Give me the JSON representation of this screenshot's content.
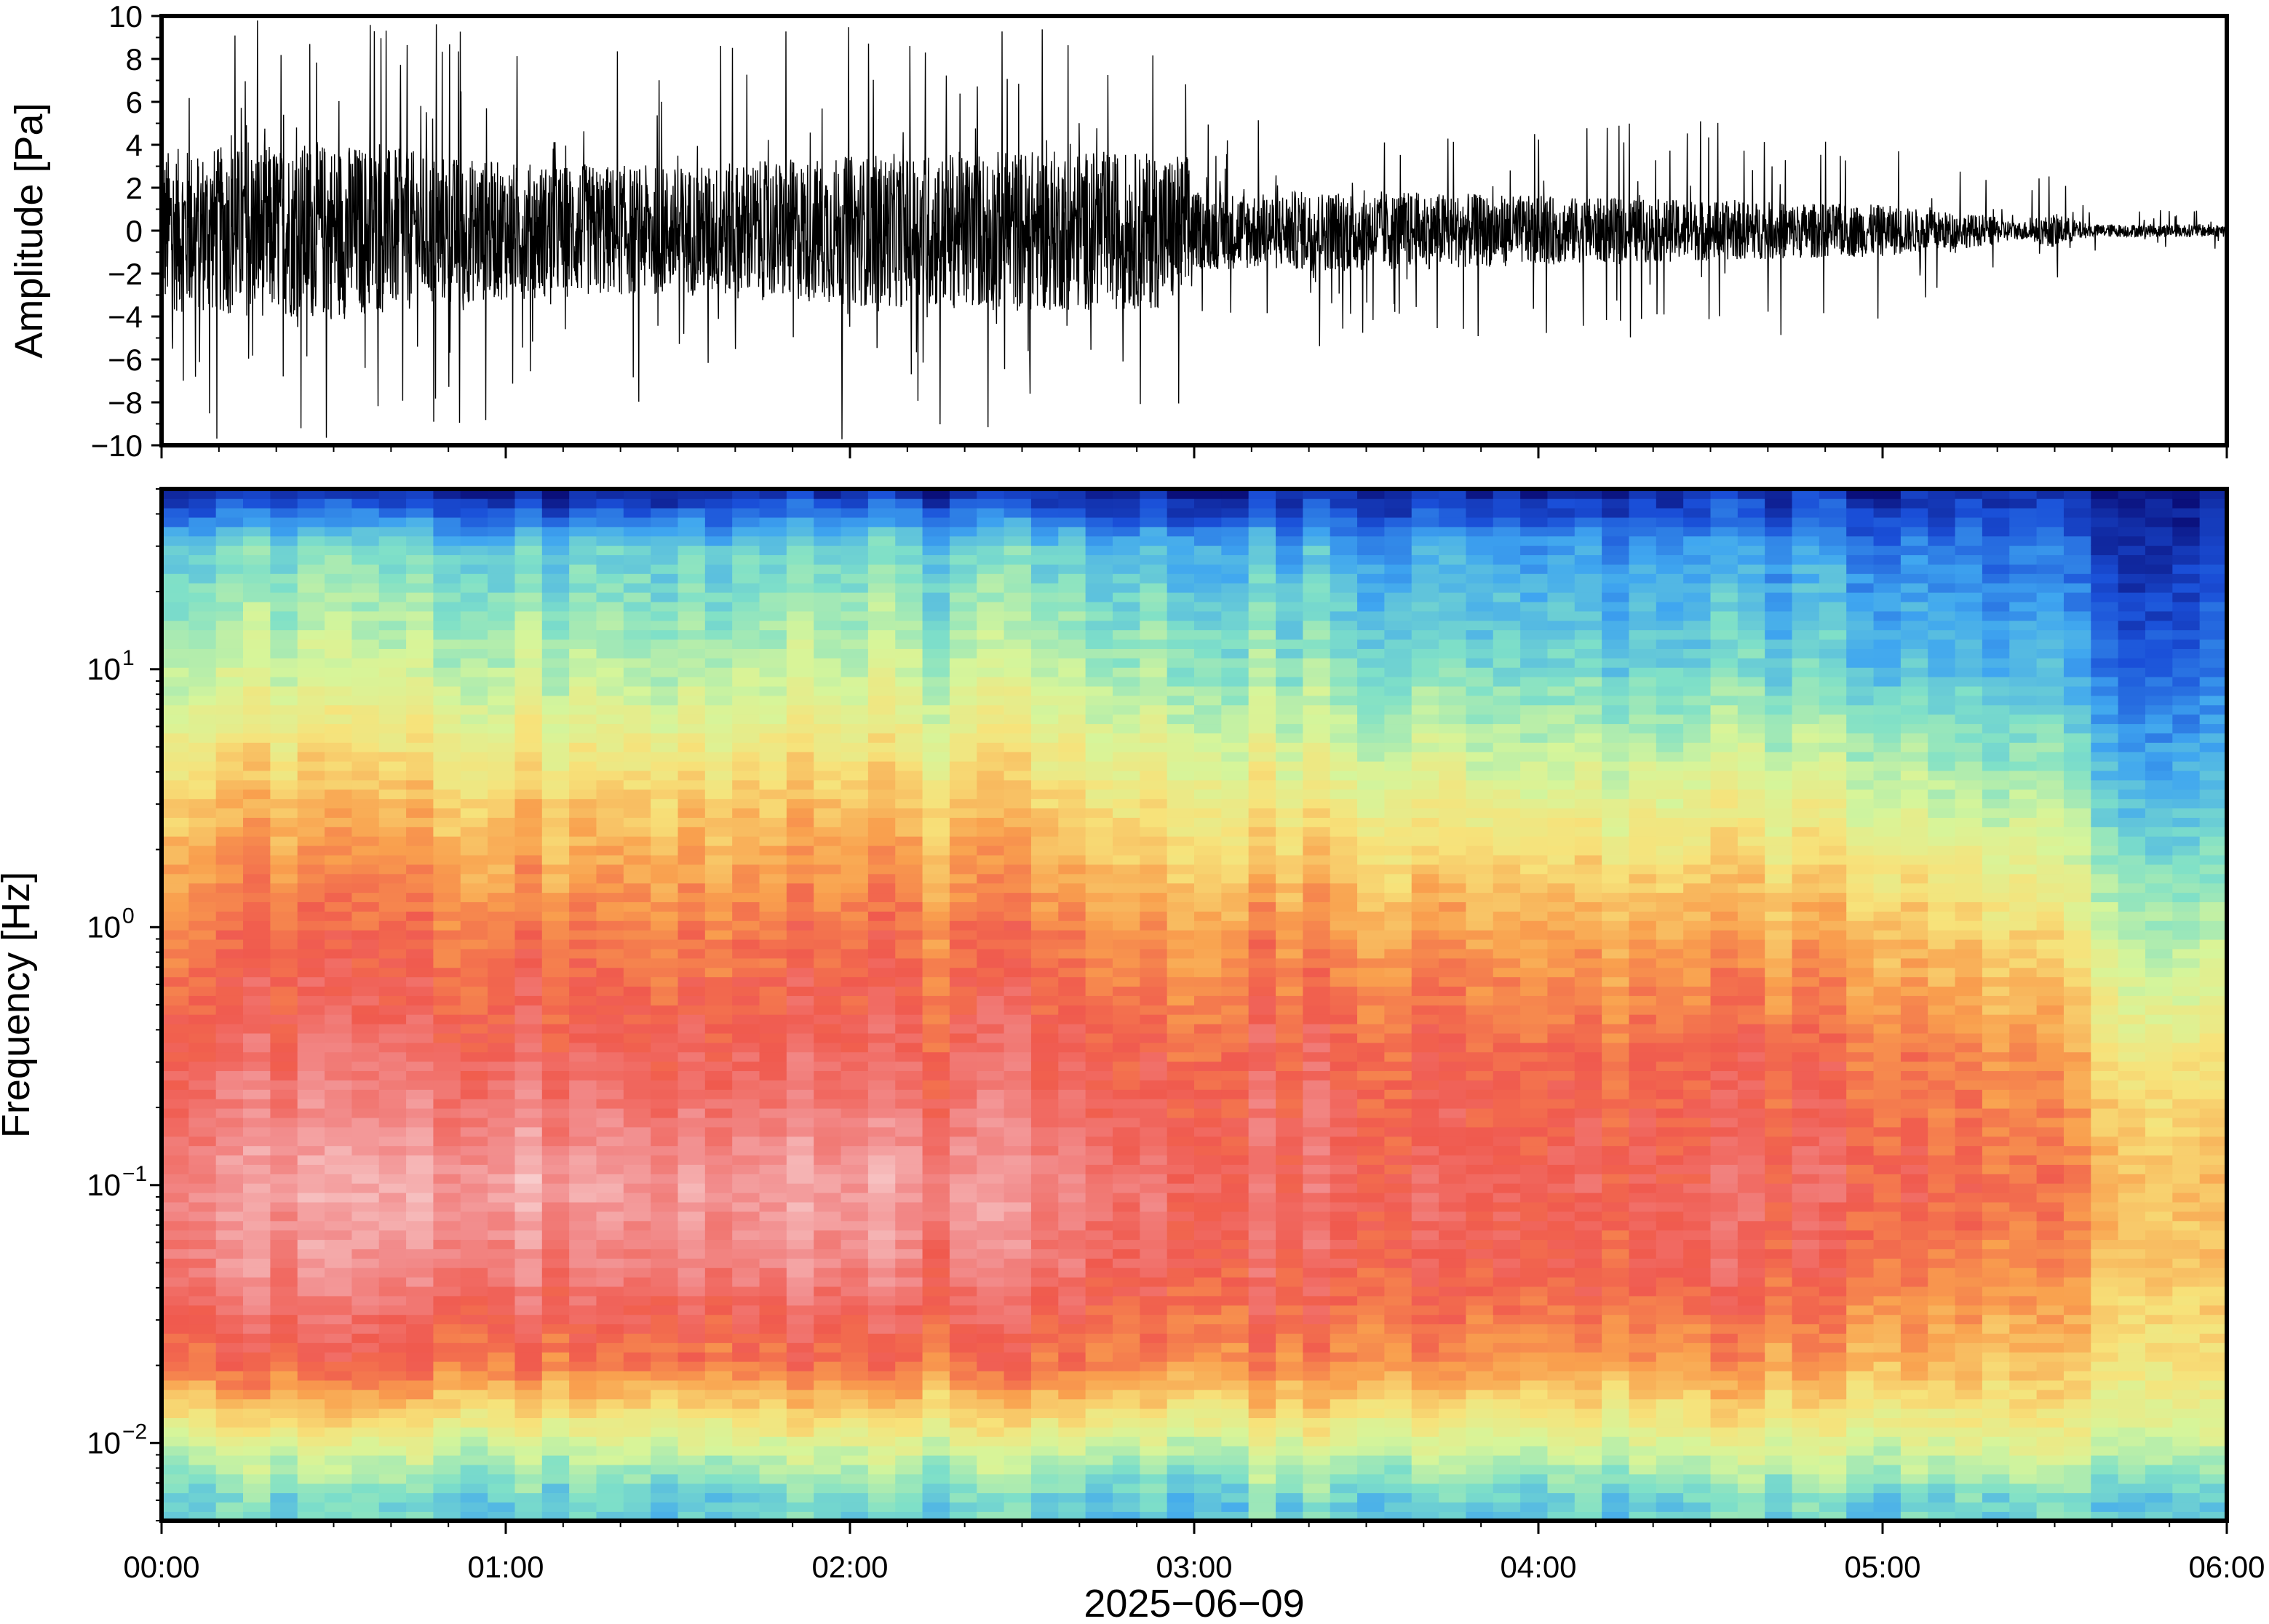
{
  "chart_data": [
    {
      "type": "line",
      "panel": "waveform",
      "ylabel": "Amplitude [Pa]",
      "ylim": [
        -10,
        10
      ],
      "yticks": [
        -10,
        -8,
        -6,
        -4,
        -2,
        0,
        2,
        4,
        6,
        8,
        10
      ],
      "ytick_labels": [
        "−10",
        "−8",
        "−6",
        "−4",
        "−2",
        "0",
        "2",
        "4",
        "6",
        "8",
        "10"
      ],
      "xlim": [
        "00:00",
        "06:00"
      ],
      "color": "#000000",
      "envelope": {
        "x_hours": [
          0.0,
          0.5,
          1.0,
          1.5,
          2.0,
          2.5,
          2.99,
          3.0,
          3.5,
          4.0,
          4.5,
          5.0,
          5.3,
          5.4,
          5.5,
          5.6,
          6.0
        ],
        "typical_amplitude": [
          3.8,
          4.2,
          3.2,
          3.0,
          3.5,
          3.8,
          3.6,
          1.8,
          1.9,
          1.6,
          1.4,
          1.2,
          0.7,
          0.4,
          0.8,
          0.3,
          0.3
        ],
        "peak_amplitude": [
          9.8,
          9.8,
          9.6,
          8.5,
          9.8,
          9.5,
          8.6,
          5.2,
          5.5,
          5.3,
          5.2,
          4.5,
          3.2,
          2.0,
          3.0,
          1.0,
          1.0
        ]
      }
    },
    {
      "type": "heatmap",
      "panel": "spectrogram",
      "ylabel": "Frequency [Hz]",
      "yscale": "log",
      "ylim": [
        0.005,
        50
      ],
      "yticks": [
        0.01,
        0.1,
        1,
        10
      ],
      "ytick_labels": [
        {
          "base": "10",
          "exp": "−2"
        },
        {
          "base": "10",
          "exp": "−1"
        },
        {
          "base": "10",
          "exp": "0"
        },
        {
          "base": "10",
          "exp": "1"
        }
      ],
      "xlim": [
        "00:00",
        "06:00"
      ],
      "colormap": [
        "#0a0f7a",
        "#1a4fd8",
        "#3fa6f0",
        "#7fe0c8",
        "#d6f59a",
        "#f7e27a",
        "#f9a04e",
        "#f05a4e",
        "#f28e8e",
        "#f8d0d0"
      ],
      "intensity_grid": {
        "time_hours": [
          0,
          1,
          2,
          3,
          3.2,
          4,
          4.5,
          5,
          5.5,
          5.75,
          6
        ],
        "freq_hz": [
          0.006,
          0.01,
          0.02,
          0.05,
          0.1,
          0.3,
          1,
          3,
          10,
          30,
          48
        ],
        "levels_0_to_1": [
          [
            0.3,
            0.45,
            0.74,
            0.86,
            0.88,
            0.8,
            0.72,
            0.6,
            0.42,
            0.3,
            0.05
          ],
          [
            0.3,
            0.45,
            0.73,
            0.87,
            0.93,
            0.82,
            0.72,
            0.6,
            0.42,
            0.3,
            0.05
          ],
          [
            0.3,
            0.46,
            0.72,
            0.86,
            0.9,
            0.8,
            0.72,
            0.6,
            0.42,
            0.3,
            0.05
          ],
          [
            0.3,
            0.46,
            0.72,
            0.82,
            0.85,
            0.79,
            0.7,
            0.56,
            0.4,
            0.28,
            0.05
          ],
          [
            0.3,
            0.46,
            0.7,
            0.79,
            0.81,
            0.78,
            0.68,
            0.52,
            0.36,
            0.24,
            0.05
          ],
          [
            0.3,
            0.46,
            0.68,
            0.79,
            0.8,
            0.77,
            0.66,
            0.5,
            0.33,
            0.22,
            0.05
          ],
          [
            0.3,
            0.46,
            0.66,
            0.78,
            0.79,
            0.75,
            0.64,
            0.48,
            0.3,
            0.2,
            0.05
          ],
          [
            0.3,
            0.46,
            0.63,
            0.75,
            0.78,
            0.73,
            0.62,
            0.46,
            0.28,
            0.18,
            0.05
          ],
          [
            0.3,
            0.46,
            0.58,
            0.66,
            0.7,
            0.65,
            0.52,
            0.38,
            0.22,
            0.12,
            0.04
          ],
          [
            0.3,
            0.45,
            0.55,
            0.62,
            0.63,
            0.55,
            0.4,
            0.28,
            0.15,
            0.06,
            0.02
          ],
          [
            0.3,
            0.45,
            0.56,
            0.62,
            0.63,
            0.56,
            0.42,
            0.3,
            0.18,
            0.1,
            0.04
          ]
        ]
      }
    }
  ],
  "x_axis": {
    "tick_labels": [
      "00:00",
      "01:00",
      "02:00",
      "03:00",
      "04:00",
      "05:00",
      "06:00"
    ],
    "date_label": "2025−06−09"
  }
}
